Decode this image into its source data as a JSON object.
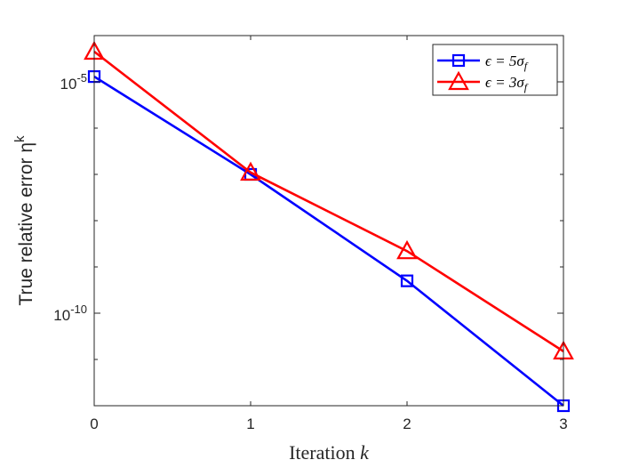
{
  "chart_data": {
    "type": "line",
    "title": "",
    "xlabel": "Iteration",
    "xlabel_var": "k",
    "ylabel": "True relative error η",
    "ylabel_sup": "k",
    "yscale": "log",
    "x": [
      0,
      1,
      2,
      3
    ],
    "xlim": [
      0,
      3
    ],
    "ylim": [
      1e-12,
      0.0001
    ],
    "xticks": [
      "0",
      "1",
      "2",
      "3"
    ],
    "yticks": [
      {
        "value": 1e-05,
        "base": "10",
        "exp": "-5"
      },
      {
        "value": 1e-10,
        "base": "10",
        "exp": "-10"
      }
    ],
    "grid": false,
    "legend_position": "top-right",
    "series": [
      {
        "name": "ϵ = 5σ",
        "name_sub": "f",
        "color": "#0000ff",
        "marker": "square",
        "values": [
          1.3e-05,
          1e-07,
          5e-10,
          1e-12
        ]
      },
      {
        "name": "ϵ = 3σ",
        "name_sub": "f",
        "color": "#ff0000",
        "marker": "triangle",
        "values": [
          4.5e-05,
          1.1e-07,
          2.2e-09,
          1.5e-11
        ]
      }
    ]
  }
}
